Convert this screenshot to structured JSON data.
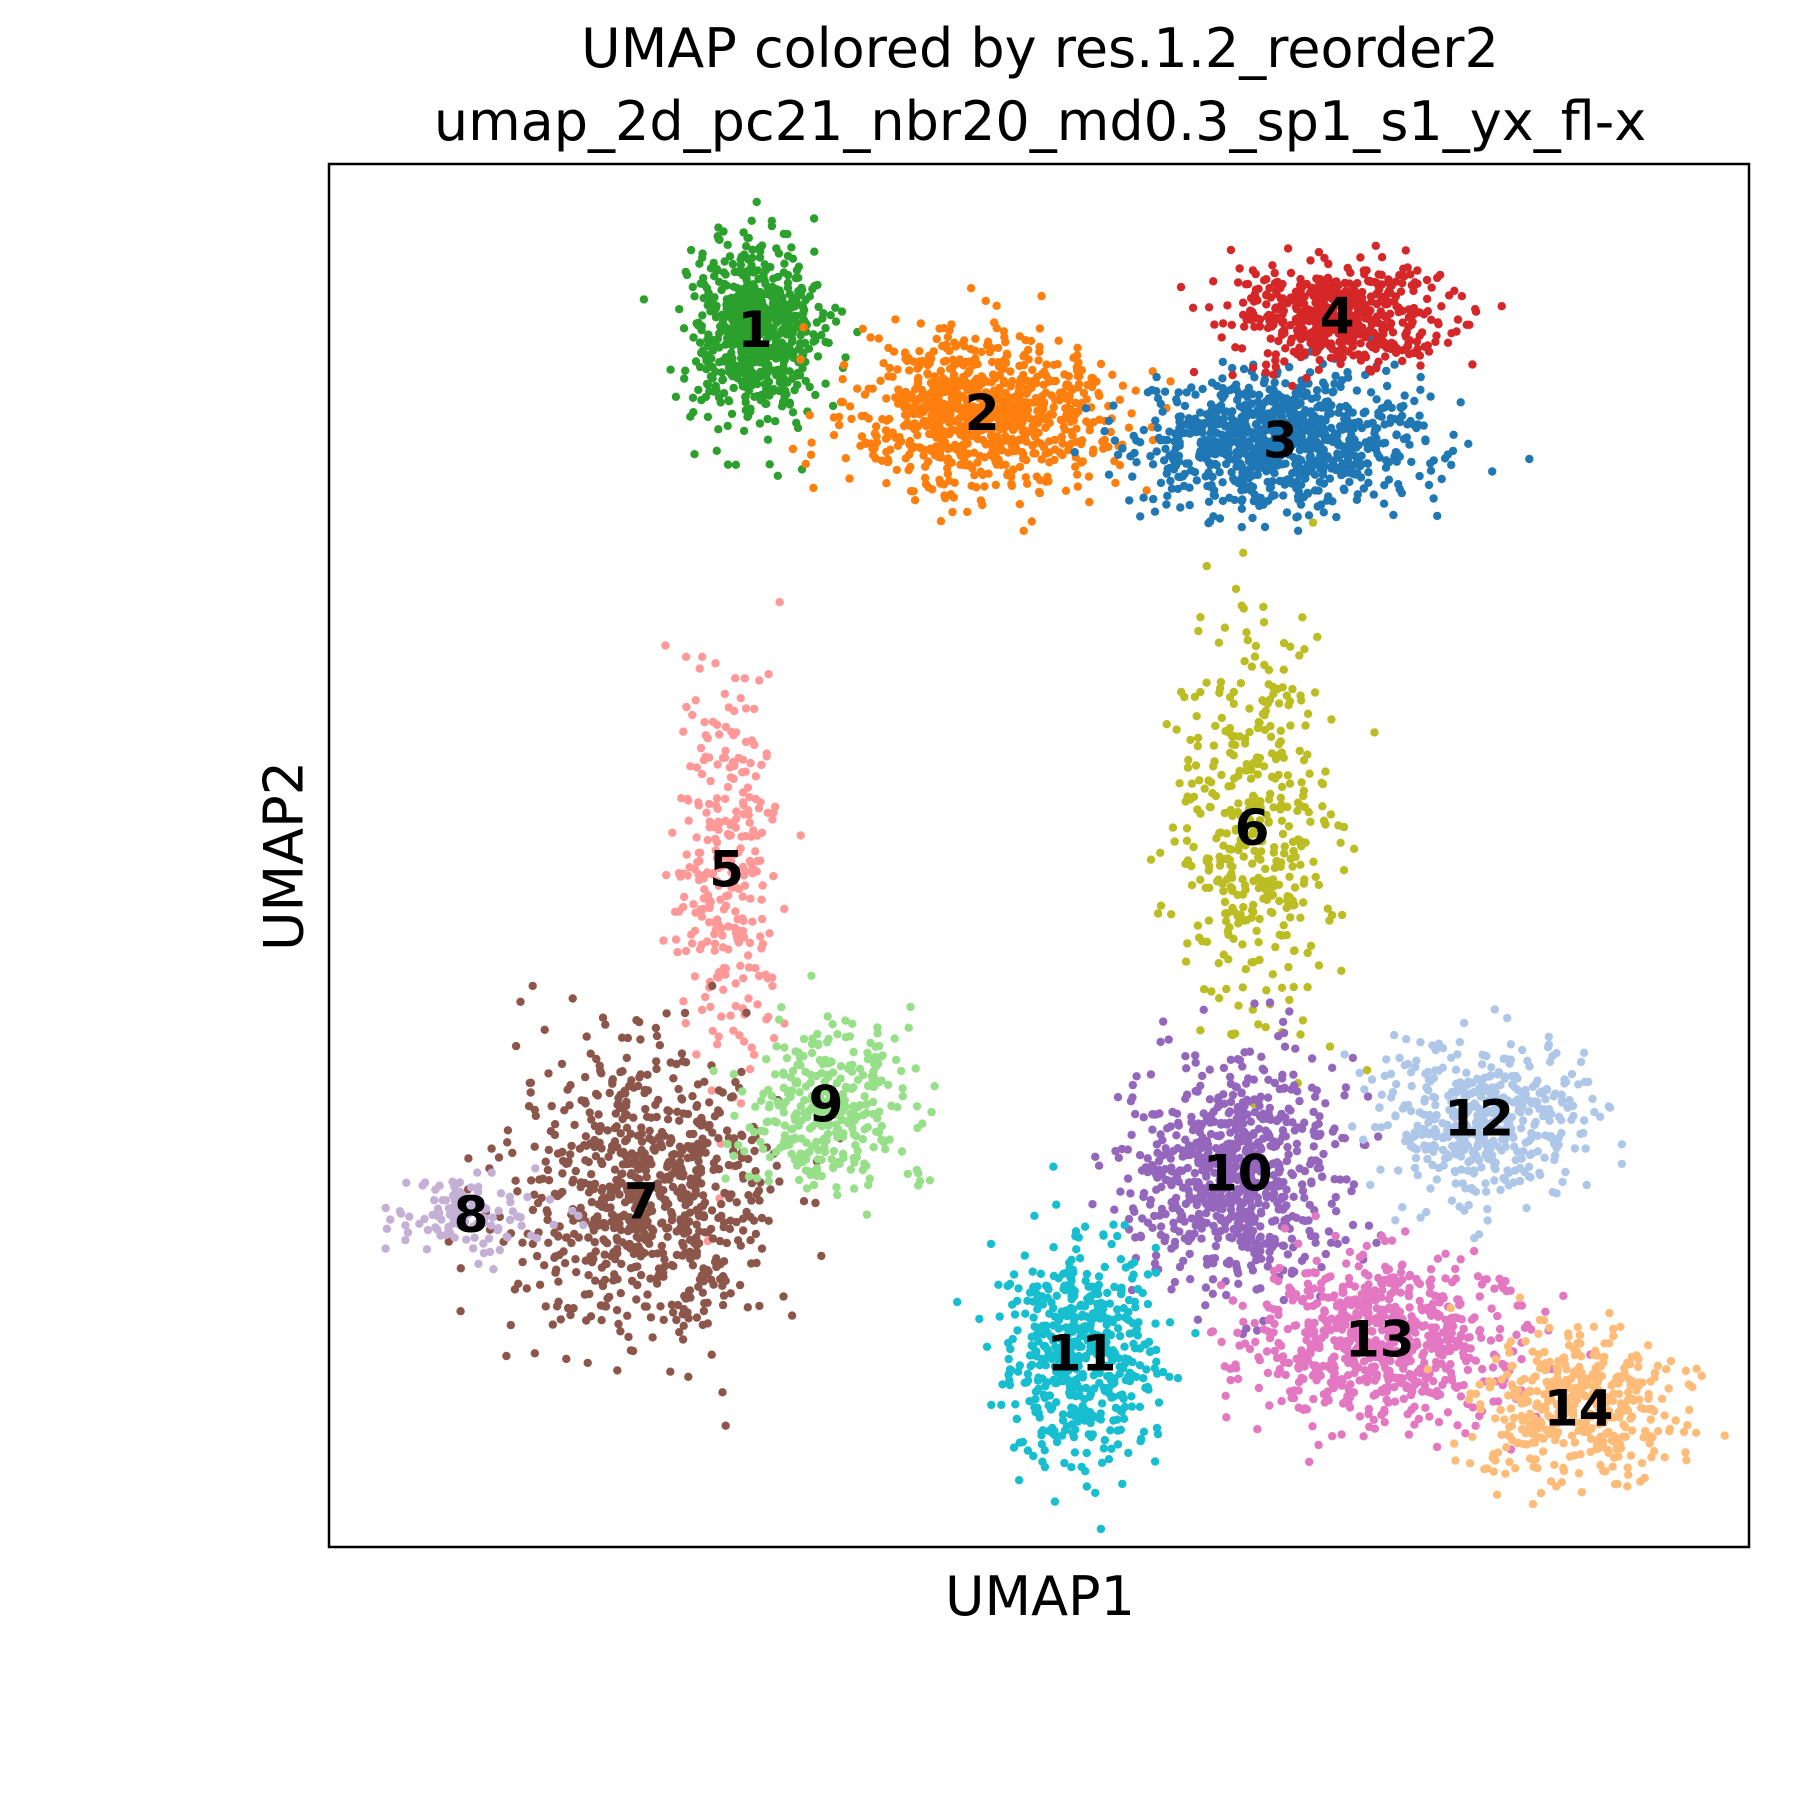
{
  "chart_data": {
    "type": "scatter",
    "title": "UMAP colored by res.1.2_reorder2",
    "subtitle": "umap_2d_pc21_nbr20_md0.3_sp1_s1_yx_fl-x",
    "xlabel": "UMAP1",
    "ylabel": "UMAP2",
    "xlim": [
      0,
      100
    ],
    "ylim": [
      0,
      100
    ],
    "grid": false,
    "legend": "on data",
    "ticks": "none",
    "clusters": [
      {
        "label": "1",
        "color": "#2ca02c",
        "center": [
          30,
          88
        ],
        "spread": [
          5,
          7
        ],
        "count": 700
      },
      {
        "label": "2",
        "color": "#ff7f0e",
        "center": [
          46,
          82
        ],
        "spread": [
          10,
          6
        ],
        "count": 850
      },
      {
        "label": "3",
        "color": "#1f77b4",
        "center": [
          67,
          80
        ],
        "spread": [
          11,
          5
        ],
        "count": 950
      },
      {
        "label": "4",
        "color": "#d62728",
        "center": [
          71,
          89
        ],
        "spread": [
          8,
          4
        ],
        "count": 550
      },
      {
        "label": "5",
        "color": "#ff9896",
        "center": [
          28,
          49
        ],
        "spread": [
          4,
          16
        ],
        "count": 300
      },
      {
        "label": "6",
        "color": "#bcbd22",
        "center": [
          65,
          52
        ],
        "spread": [
          6,
          16
        ],
        "count": 420
      },
      {
        "label": "7",
        "color": "#8c564b",
        "center": [
          22,
          25
        ],
        "spread": [
          10,
          12
        ],
        "count": 800
      },
      {
        "label": "8",
        "color": "#c5b0d5",
        "center": [
          10,
          24
        ],
        "spread": [
          6,
          3
        ],
        "count": 120
      },
      {
        "label": "9",
        "color": "#98df8a",
        "center": [
          35,
          32
        ],
        "spread": [
          7,
          7
        ],
        "count": 330
      },
      {
        "label": "10",
        "color": "#9467bd",
        "center": [
          64,
          27
        ],
        "spread": [
          8,
          9
        ],
        "count": 760
      },
      {
        "label": "11",
        "color": "#17becf",
        "center": [
          53,
          14
        ],
        "spread": [
          6,
          9
        ],
        "count": 520
      },
      {
        "label": "12",
        "color": "#aec7e8",
        "center": [
          81,
          31
        ],
        "spread": [
          8,
          6
        ],
        "count": 460
      },
      {
        "label": "13",
        "color": "#e377c2",
        "center": [
          74,
          15
        ],
        "spread": [
          10,
          7
        ],
        "count": 720
      },
      {
        "label": "14",
        "color": "#ffbb78",
        "center": [
          88,
          10
        ],
        "spread": [
          8,
          6
        ],
        "count": 420
      }
    ]
  }
}
